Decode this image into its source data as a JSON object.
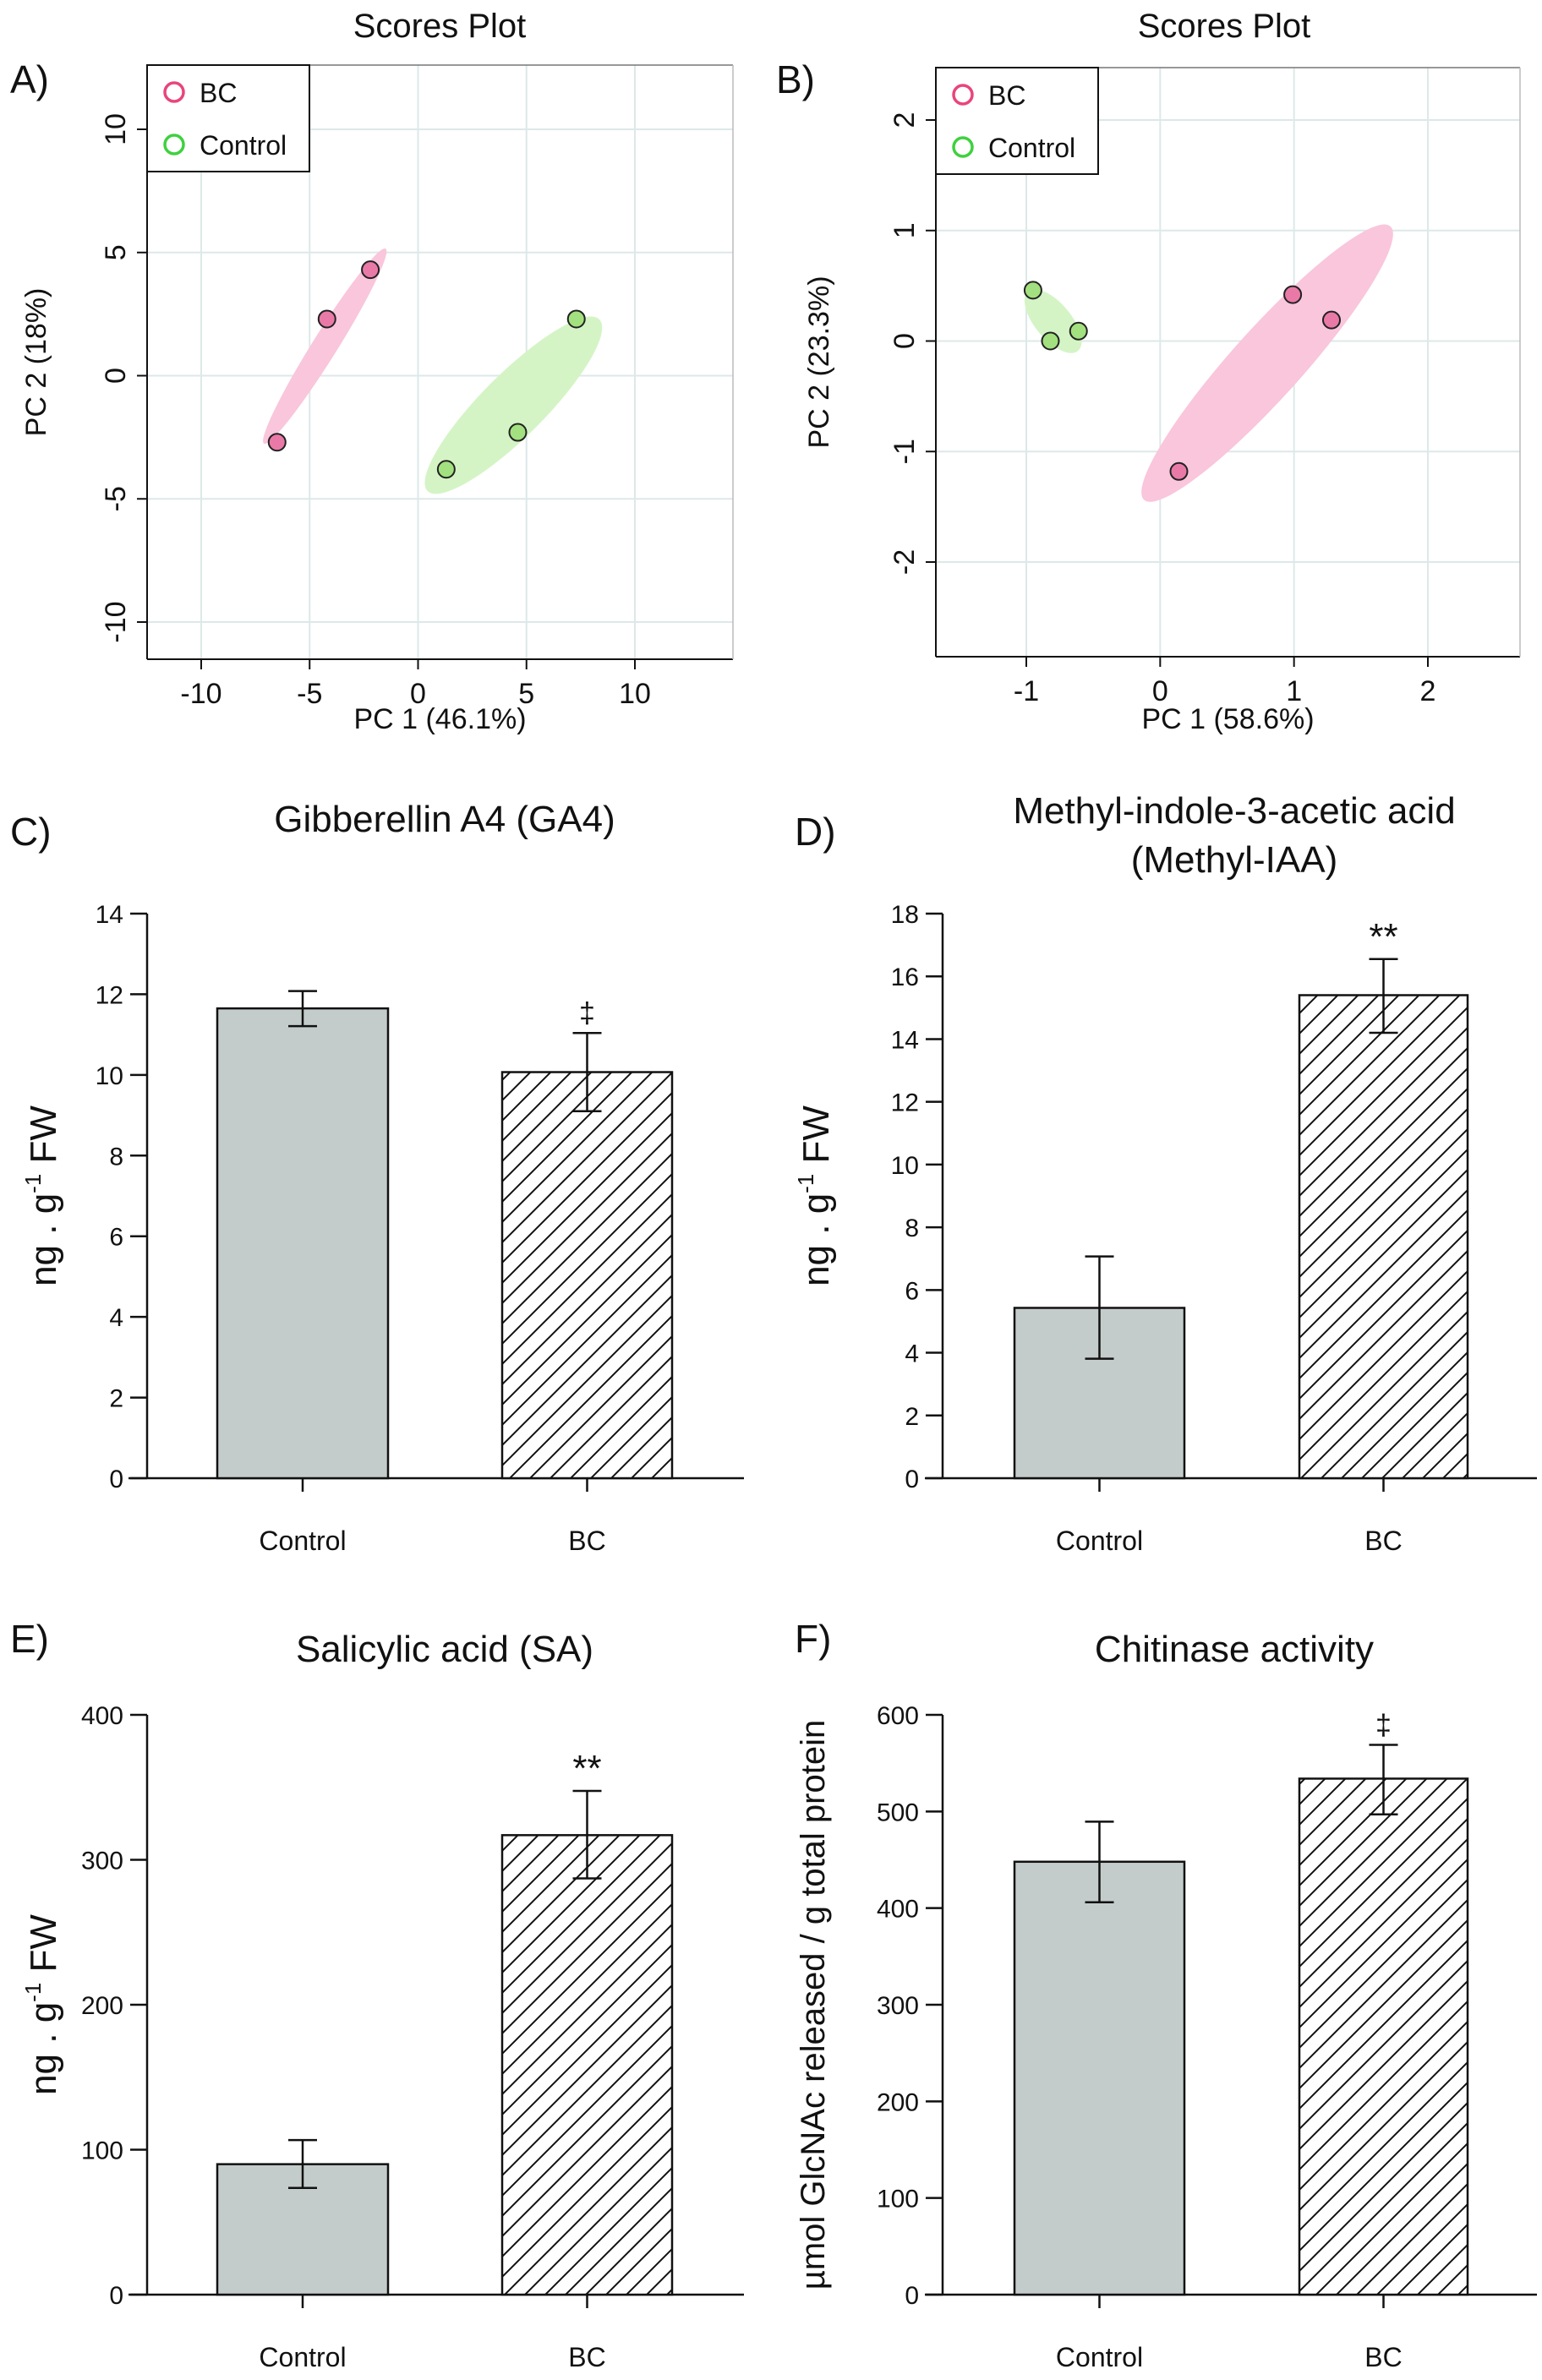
{
  "chart_data": [
    {
      "panel_label": "A)",
      "type": "scatter",
      "title": "Scores Plot",
      "xlabel": "PC 1 (46.1%)",
      "ylabel": "PC 2 (18%)",
      "xlim": [
        -12.5,
        14.5
      ],
      "ylim": [
        -11.5,
        12.5
      ],
      "xticks": [
        -10,
        -5,
        0,
        5,
        10
      ],
      "yticks": [
        -10,
        -5,
        0,
        5,
        10
      ],
      "grid": true,
      "legend": {
        "position": "top-left",
        "entries": [
          {
            "label": "BC",
            "color": "#e8457d"
          },
          {
            "label": "Control",
            "color": "#3fd13f"
          }
        ]
      },
      "series": [
        {
          "name": "BC",
          "color": "#e8457d",
          "fill": "#e97aa8",
          "ellipse_fill": "#f9c6dc",
          "points": [
            [
              -2.2,
              4.3
            ],
            [
              -4.2,
              2.3
            ],
            [
              -6.5,
              -2.7
            ]
          ],
          "ellipse": {
            "cx": -4.3,
            "cy": 1.2,
            "rx": 10.6,
            "ry": 1.15,
            "angle_deg": 58
          }
        },
        {
          "name": "Control",
          "color": "#3fd13f",
          "fill": "#a3e07f",
          "ellipse_fill": "#d5f4c6",
          "points": [
            [
              7.3,
              2.3
            ],
            [
              4.6,
              -2.3
            ],
            [
              1.3,
              -3.8
            ]
          ],
          "ellipse": {
            "cx": 4.4,
            "cy": -1.2,
            "rx": 11.2,
            "ry": 2.9,
            "angle_deg": 45
          }
        }
      ]
    },
    {
      "panel_label": "B)",
      "type": "scatter",
      "title": "Scores Plot",
      "xlabel": "PC 1 (58.6%)",
      "ylabel": "PC 2 (23.3%)",
      "xlim": [
        -1.68,
        2.7
      ],
      "ylim": [
        -2.85,
        2.45
      ],
      "xticks": [
        -1,
        0,
        1,
        2
      ],
      "yticks": [
        -2,
        -1,
        0,
        1,
        2
      ],
      "grid": true,
      "legend": {
        "position": "top-left",
        "entries": [
          {
            "label": "BC",
            "color": "#e8457d"
          },
          {
            "label": "Control",
            "color": "#3fd13f"
          }
        ]
      },
      "series": [
        {
          "name": "BC",
          "color": "#e8457d",
          "fill": "#e97aa8",
          "ellipse_fill": "#f9c6dc",
          "points": [
            [
              0.99,
              0.42
            ],
            [
              1.28,
              0.19
            ],
            [
              0.14,
              -1.18
            ]
          ],
          "ellipse": {
            "cx": 0.8,
            "cy": -0.2,
            "rx": 2.75,
            "ry": 0.52,
            "angle_deg": 48
          }
        },
        {
          "name": "Control",
          "color": "#3fd13f",
          "fill": "#a3e07f",
          "ellipse_fill": "#d5f4c6",
          "points": [
            [
              -0.95,
              0.46
            ],
            [
              -0.82,
              0.0
            ],
            [
              -0.61,
              0.09
            ]
          ],
          "ellipse": {
            "cx": -0.8,
            "cy": 0.18,
            "rx": 0.58,
            "ry": 0.27,
            "angle_deg": -50
          }
        }
      ]
    },
    {
      "panel_label": "C)",
      "type": "bar",
      "title": [
        "Gibberellin A4 (GA4)"
      ],
      "ylabel": "ng . g-1 FW",
      "ylim": [
        0,
        14
      ],
      "yticks": [
        0,
        2,
        4,
        6,
        8,
        10,
        12,
        14
      ],
      "categories": [
        "Control",
        "BC"
      ],
      "values": [
        11.65,
        10.07
      ],
      "error_high": [
        12.08,
        11.04
      ],
      "error_low": [
        11.21,
        9.1
      ],
      "annotations": [
        "",
        "‡"
      ]
    },
    {
      "panel_label": "D)",
      "type": "bar",
      "title": [
        "Methyl-indole-3-acetic acid",
        "(Methyl-IAA)"
      ],
      "ylabel": "ng . g-1 FW",
      "ylim": [
        0,
        18
      ],
      "yticks": [
        0,
        2,
        4,
        6,
        8,
        10,
        12,
        14,
        16,
        18
      ],
      "categories": [
        "Control",
        "BC"
      ],
      "values": [
        5.43,
        15.4
      ],
      "error_high": [
        7.07,
        16.55
      ],
      "error_low": [
        3.81,
        14.2
      ],
      "annotations": [
        "",
        "**"
      ]
    },
    {
      "panel_label": "E)",
      "type": "bar",
      "title": [
        "Salicylic acid (SA)"
      ],
      "ylabel": "ng . g-1 FW",
      "ylim": [
        0,
        400
      ],
      "yticks": [
        0,
        100,
        200,
        300,
        400
      ],
      "categories": [
        "Control",
        "BC"
      ],
      "values": [
        90,
        317
      ],
      "error_high": [
        106.6,
        347.5
      ],
      "error_low": [
        73.6,
        287.2
      ],
      "annotations": [
        "",
        "**"
      ]
    },
    {
      "panel_label": "F)",
      "type": "bar",
      "title": [
        "Chitinase activity"
      ],
      "ylabel": "µmol GlcNAc released / g total protein",
      "ylim": [
        0,
        600
      ],
      "yticks": [
        0,
        100,
        200,
        300,
        400,
        500,
        600
      ],
      "categories": [
        "Control",
        "BC"
      ],
      "values": [
        448,
        534
      ],
      "error_high": [
        489.5,
        569
      ],
      "error_low": [
        406,
        497
      ],
      "annotations": [
        "",
        "‡"
      ]
    }
  ],
  "colors": {
    "control_bar": "#c3cccb",
    "bar_stroke": "#111111",
    "grid": "#dde8e8"
  }
}
